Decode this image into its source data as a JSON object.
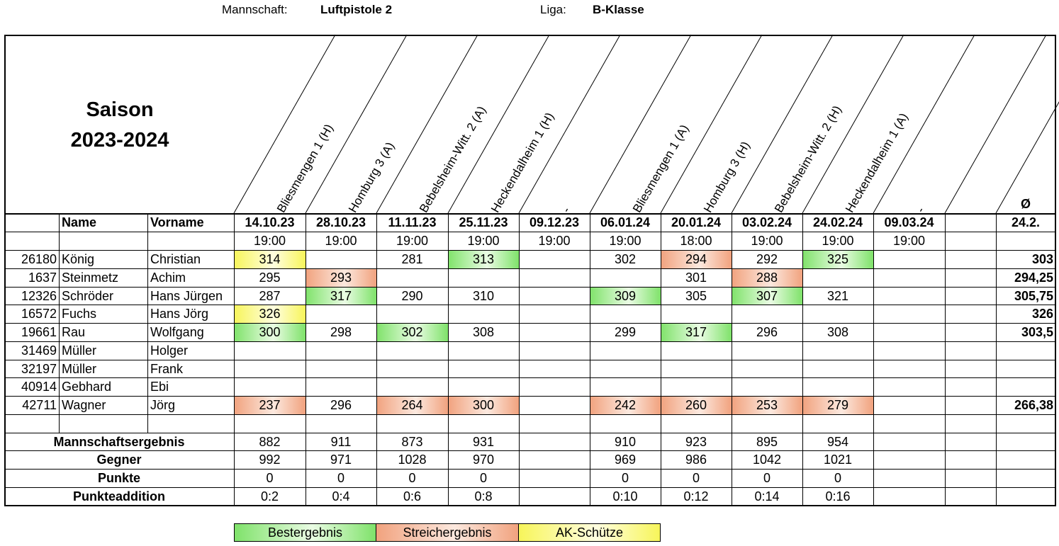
{
  "header": {
    "team_label": "Mannschaft:",
    "team_value": "Luftpistole 2",
    "league_label": "Liga:",
    "league_value": "B-Klasse"
  },
  "season": {
    "line1": "Saison",
    "line2": "2023-2024"
  },
  "columns": {
    "name": "Name",
    "vorname": "Vorname",
    "avg_symbol": "Ø",
    "avg_date": "24.2."
  },
  "matches": [
    {
      "opponent": "Bliesmengen 1 (H)",
      "date": "14.10.23",
      "time": "19:00"
    },
    {
      "opponent": "Homburg 3 (A)",
      "date": "28.10.23",
      "time": "19:00"
    },
    {
      "opponent": "Bebelsheim-Witt. 2 (A)",
      "date": "11.11.23",
      "time": "19:00"
    },
    {
      "opponent": "Heckendalheim 1 (H)",
      "date": "25.11.23",
      "time": "19:00"
    },
    {
      "opponent": "-",
      "date": "09.12.23",
      "time": "19:00"
    },
    {
      "opponent": "Bliesmengen 1 (A)",
      "date": "06.01.24",
      "time": "19:00"
    },
    {
      "opponent": "Homburg 3 (H)",
      "date": "20.01.24",
      "time": "18:00"
    },
    {
      "opponent": "Bebelsheim-Witt. 2 (H)",
      "date": "03.02.24",
      "time": "19:00"
    },
    {
      "opponent": "Heckendalheim 1 (A)",
      "date": "24.02.24",
      "time": "19:00"
    },
    {
      "opponent": "-",
      "date": "09.03.24",
      "time": "19:00"
    }
  ],
  "players": [
    {
      "id": "26180",
      "name": "König",
      "vorname": "Christian",
      "scores": [
        "314",
        "",
        "281",
        "313",
        "",
        "302",
        "294",
        "292",
        "325",
        ""
      ],
      "marks": [
        "yellow",
        "",
        "",
        "green",
        "",
        "",
        "orange",
        "",
        "green",
        ""
      ],
      "avg": "303"
    },
    {
      "id": "1637",
      "name": "Steinmetz",
      "vorname": "Achim",
      "scores": [
        "295",
        "293",
        "",
        "",
        "",
        "",
        "301",
        "288",
        "",
        ""
      ],
      "marks": [
        "",
        "orange",
        "",
        "",
        "",
        "",
        "",
        "orange",
        "",
        ""
      ],
      "avg": "294,25"
    },
    {
      "id": "12326",
      "name": "Schröder",
      "vorname": "Hans Jürgen",
      "scores": [
        "287",
        "317",
        "290",
        "310",
        "",
        "309",
        "305",
        "307",
        "321",
        ""
      ],
      "marks": [
        "",
        "green",
        "",
        "",
        "",
        "green",
        "",
        "green",
        "",
        ""
      ],
      "avg": "305,75"
    },
    {
      "id": "16572",
      "name": "Fuchs",
      "vorname": "Hans Jörg",
      "scores": [
        "326",
        "",
        "",
        "",
        "",
        "",
        "",
        "",
        "",
        ""
      ],
      "marks": [
        "yellow",
        "",
        "",
        "",
        "",
        "",
        "",
        "",
        "",
        ""
      ],
      "avg": "326"
    },
    {
      "id": "19661",
      "name": "Rau",
      "vorname": "Wolfgang",
      "scores": [
        "300",
        "298",
        "302",
        "308",
        "",
        "299",
        "317",
        "296",
        "308",
        ""
      ],
      "marks": [
        "green",
        "",
        "green",
        "",
        "",
        "",
        "green",
        "",
        "",
        ""
      ],
      "avg": "303,5"
    },
    {
      "id": "31469",
      "name": "Müller",
      "vorname": "Holger",
      "scores": [
        "",
        "",
        "",
        "",
        "",
        "",
        "",
        "",
        "",
        ""
      ],
      "marks": [
        "",
        "",
        "",
        "",
        "",
        "",
        "",
        "",
        "",
        ""
      ],
      "avg": ""
    },
    {
      "id": "32197",
      "name": "Müller",
      "vorname": "Frank",
      "scores": [
        "",
        "",
        "",
        "",
        "",
        "",
        "",
        "",
        "",
        ""
      ],
      "marks": [
        "",
        "",
        "",
        "",
        "",
        "",
        "",
        "",
        "",
        ""
      ],
      "avg": ""
    },
    {
      "id": "40914",
      "name": "Gebhard",
      "vorname": "Ebi",
      "scores": [
        "",
        "",
        "",
        "",
        "",
        "",
        "",
        "",
        "",
        ""
      ],
      "marks": [
        "",
        "",
        "",
        "",
        "",
        "",
        "",
        "",
        "",
        ""
      ],
      "avg": ""
    },
    {
      "id": "42711",
      "name": "Wagner",
      "vorname": "Jörg",
      "scores": [
        "237",
        "296",
        "264",
        "300",
        "",
        "242",
        "260",
        "253",
        "279",
        ""
      ],
      "marks": [
        "orange",
        "",
        "orange",
        "orange",
        "",
        "orange",
        "orange",
        "orange",
        "orange",
        ""
      ],
      "avg": "266,38"
    }
  ],
  "summary": [
    {
      "label": "Mannschaftsergebnis",
      "values": [
        "882",
        "911",
        "873",
        "931",
        "",
        "910",
        "923",
        "895",
        "954",
        ""
      ]
    },
    {
      "label": "Gegner",
      "values": [
        "992",
        "971",
        "1028",
        "970",
        "",
        "969",
        "986",
        "1042",
        "1021",
        ""
      ]
    },
    {
      "label": "Punkte",
      "values": [
        "0",
        "0",
        "0",
        "0",
        "",
        "0",
        "0",
        "0",
        "0",
        ""
      ]
    },
    {
      "label": "Punkteaddition",
      "values": [
        "0:2",
        "0:4",
        "0:6",
        "0:8",
        "",
        "0:10",
        "0:12",
        "0:14",
        "0:16",
        ""
      ]
    }
  ],
  "legend": {
    "best": "Bestergebnis",
    "strike": "Streichergebnis",
    "ak": "AK-Schütze"
  },
  "colors": {
    "best": "#7fe26a",
    "strike": "#f1a27e",
    "ak": "#f7f55a"
  }
}
